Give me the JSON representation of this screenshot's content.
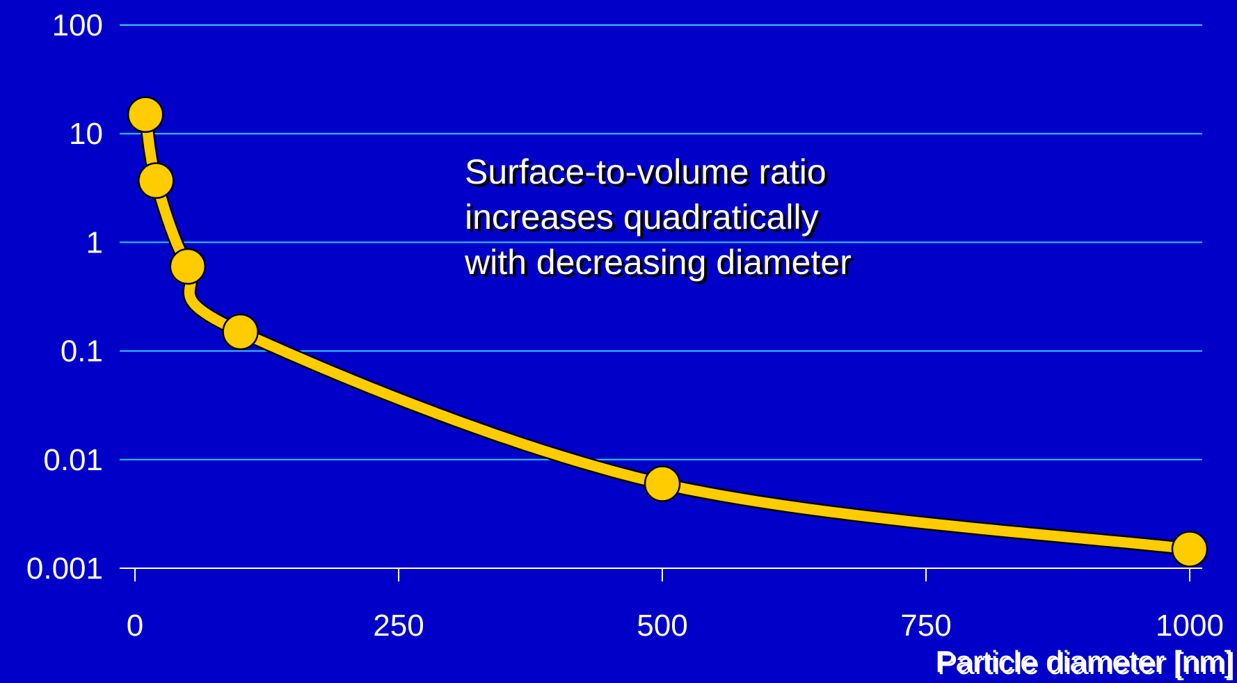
{
  "chart_data": {
    "type": "line",
    "title": "",
    "xlabel": "Particle diameter [nm]",
    "ylabel": "",
    "x_scale": "linear",
    "y_scale": "log",
    "xlim": [
      0,
      1000
    ],
    "ylim": [
      0.001,
      100
    ],
    "x_ticks": [
      "0",
      "250",
      "500",
      "750",
      "1000"
    ],
    "y_ticks": [
      "100",
      "10",
      "1",
      "0.1",
      "0.01",
      "0.001"
    ],
    "y_grid": true,
    "x_grid": false,
    "series": [
      {
        "points": [
          {
            "x": 10,
            "y": 15
          },
          {
            "x": 20,
            "y": 3.7
          },
          {
            "x": 50,
            "y": 0.6
          },
          {
            "x": 100,
            "y": 0.15
          },
          {
            "x": 500,
            "y": 0.006
          },
          {
            "x": 1000,
            "y": 0.0015
          }
        ]
      }
    ],
    "annotation": {
      "lines": [
        "Surface-to-volume ratio",
        "increases quadratically",
        "with decreasing diameter"
      ]
    },
    "colors": {
      "background": "#0000c8",
      "gridline": "#33ccff",
      "axis": "#ffffff",
      "curve": "#ffcc00",
      "curve_outline": "#000000",
      "text": "#ffffff"
    }
  }
}
